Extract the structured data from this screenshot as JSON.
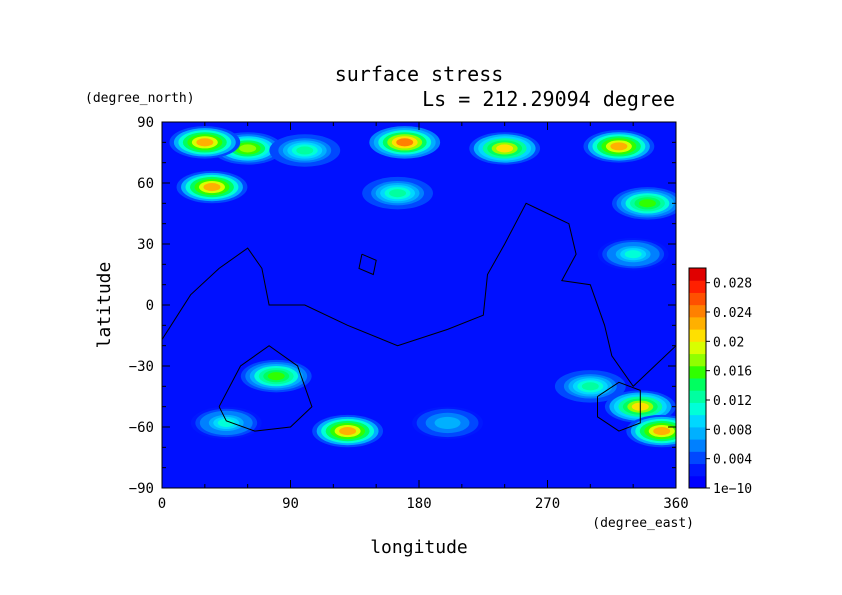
{
  "chart_data": {
    "type": "heatmap",
    "title": "surface stress",
    "subtitle": "Ls = 212.29094 degree",
    "xlabel": "longitude",
    "ylabel": "latitude",
    "xunit": "(degree_east)",
    "yunit": "(degree_north)",
    "xlim": [
      0,
      360
    ],
    "ylim": [
      -90,
      90
    ],
    "xticks": [
      "0",
      "90",
      "180",
      "270",
      "360"
    ],
    "yticks": [
      "90",
      "60",
      "30",
      "0",
      "−30",
      "−60",
      "−90"
    ],
    "colorbar": {
      "ticks": [
        "1e−10",
        "0.004",
        "0.008",
        "0.012",
        "0.016",
        "0.02",
        "0.024",
        "0.028"
      ],
      "range": [
        0,
        0.03
      ],
      "colors": [
        "#0000ff",
        "#0018ff",
        "#0048ff",
        "#0080ff",
        "#00b0ff",
        "#00d8ff",
        "#00ffd8",
        "#00ffa0",
        "#00ff60",
        "#30ff00",
        "#90ff00",
        "#d8ff00",
        "#ffe000",
        "#ffb000",
        "#ff8000",
        "#ff5000",
        "#ff2000",
        "#e00000"
      ]
    },
    "features": [
      {
        "lon": 60,
        "lat": 77,
        "value": 0.018
      },
      {
        "lon": 30,
        "lat": 80,
        "value": 0.022
      },
      {
        "lon": 170,
        "lat": 80,
        "value": 0.024
      },
      {
        "lon": 240,
        "lat": 77,
        "value": 0.02
      },
      {
        "lon": 320,
        "lat": 78,
        "value": 0.022
      },
      {
        "lon": 100,
        "lat": 76,
        "value": 0.012
      },
      {
        "lon": 35,
        "lat": 58,
        "value": 0.022
      },
      {
        "lon": 165,
        "lat": 55,
        "value": 0.012
      },
      {
        "lon": 340,
        "lat": 50,
        "value": 0.016
      },
      {
        "lon": 330,
        "lat": 25,
        "value": 0.01
      },
      {
        "lon": 80,
        "lat": -35,
        "value": 0.016
      },
      {
        "lon": 130,
        "lat": -62,
        "value": 0.022
      },
      {
        "lon": 335,
        "lat": -50,
        "value": 0.02
      },
      {
        "lon": 350,
        "lat": -62,
        "value": 0.022
      },
      {
        "lon": 300,
        "lat": -40,
        "value": 0.012
      },
      {
        "lon": 45,
        "lat": -58,
        "value": 0.01
      },
      {
        "lon": 200,
        "lat": -58,
        "value": 0.008
      }
    ],
    "coastlines": [
      {
        "points": [
          [
            0,
            -17
          ],
          [
            20,
            5
          ],
          [
            40,
            18
          ],
          [
            60,
            28
          ],
          [
            70,
            18
          ],
          [
            75,
            0
          ],
          [
            100,
            0
          ],
          [
            130,
            -10
          ],
          [
            165,
            -20
          ],
          [
            200,
            -12
          ],
          [
            225,
            -5
          ],
          [
            228,
            15
          ],
          [
            240,
            30
          ],
          [
            255,
            50
          ],
          [
            270,
            45
          ],
          [
            285,
            40
          ],
          [
            290,
            25
          ],
          [
            280,
            12
          ],
          [
            300,
            10
          ],
          [
            310,
            -10
          ],
          [
            315,
            -25
          ],
          [
            330,
            -40
          ],
          [
            345,
            -30
          ],
          [
            360,
            -20
          ]
        ]
      },
      {
        "points": [
          [
            40,
            -50
          ],
          [
            55,
            -30
          ],
          [
            75,
            -20
          ],
          [
            95,
            -30
          ],
          [
            105,
            -50
          ],
          [
            90,
            -60
          ],
          [
            65,
            -62
          ],
          [
            45,
            -57
          ],
          [
            40,
            -50
          ]
        ]
      },
      {
        "points": [
          [
            305,
            -45
          ],
          [
            320,
            -38
          ],
          [
            335,
            -42
          ],
          [
            335,
            -58
          ],
          [
            320,
            -62
          ],
          [
            305,
            -55
          ],
          [
            305,
            -45
          ]
        ]
      },
      {
        "points": [
          [
            140,
            25
          ],
          [
            150,
            22
          ],
          [
            148,
            15
          ],
          [
            138,
            18
          ],
          [
            140,
            25
          ]
        ]
      }
    ]
  }
}
